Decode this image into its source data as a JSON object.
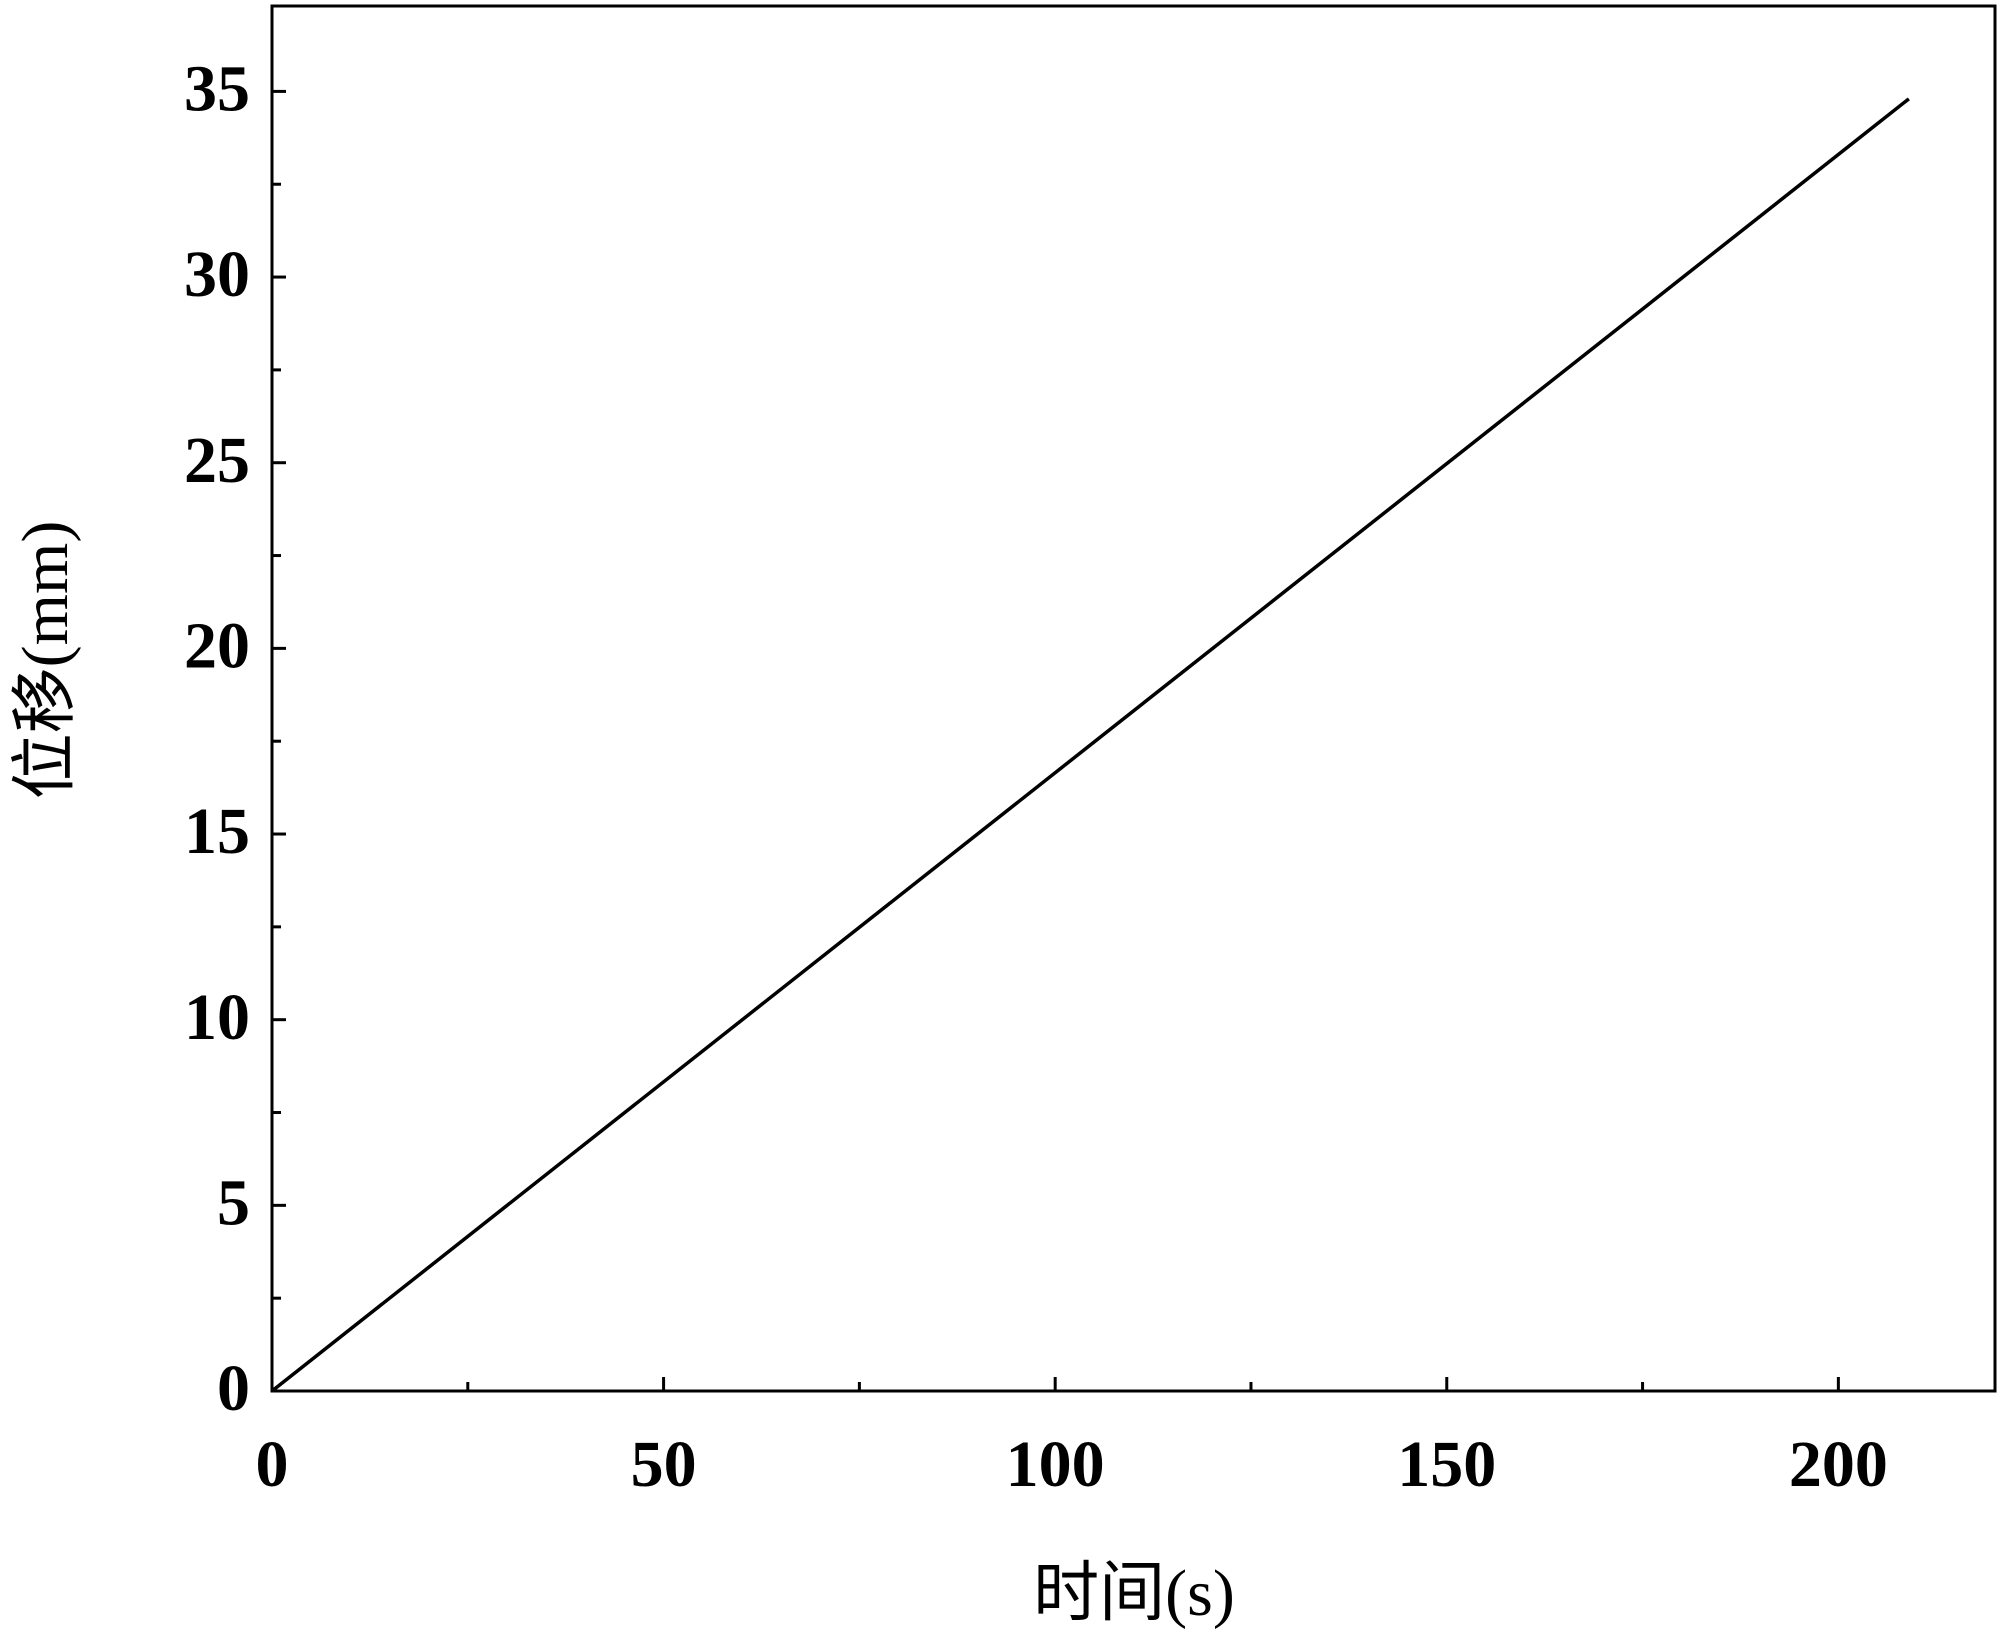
{
  "chart_data": {
    "type": "line",
    "x_label": "时间(s)",
    "y_label": "位移(mm)",
    "x": [
      0,
      209
    ],
    "series": [
      {
        "name": "位移",
        "color": "#000000",
        "values": [
          0,
          34.8
        ]
      }
    ],
    "xlim": [
      0,
      220
    ],
    "xticks": [
      0,
      50,
      100,
      150,
      200
    ],
    "ylim": [
      0,
      37.3
    ],
    "yticks": [
      0,
      5,
      10,
      15,
      20,
      25,
      30,
      35
    ],
    "grid": false
  }
}
